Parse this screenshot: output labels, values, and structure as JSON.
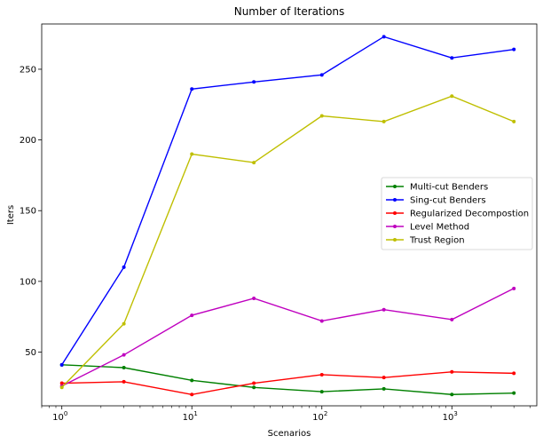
{
  "chart_data": {
    "type": "line",
    "title": "Number of Iterations",
    "xlabel": "Scenarios",
    "ylabel": "Iters",
    "xscale": "log",
    "xlim": [
      0.7,
      4500
    ],
    "ylim": [
      12,
      282
    ],
    "x": [
      1,
      3,
      10,
      30,
      100,
      300,
      1000,
      3000
    ],
    "xticks": [
      {
        "value": 1,
        "base": "10",
        "exp": "0"
      },
      {
        "value": 10,
        "base": "10",
        "exp": "1"
      },
      {
        "value": 100,
        "base": "10",
        "exp": "2"
      },
      {
        "value": 1000,
        "base": "10",
        "exp": "3"
      }
    ],
    "yticks": [
      50,
      100,
      150,
      200,
      250
    ],
    "grid": false,
    "legend_position": "center-right",
    "series": [
      {
        "name": "Multi-cut Benders",
        "color": "#008000",
        "values": [
          41,
          39,
          30,
          25,
          22,
          24,
          20,
          21
        ]
      },
      {
        "name": "Sing-cut Benders",
        "color": "#0000ff",
        "values": [
          41,
          110,
          236,
          241,
          246,
          273,
          258,
          264
        ]
      },
      {
        "name": "Regularized Decompostion",
        "color": "#ff0000",
        "values": [
          28,
          29,
          20,
          28,
          34,
          32,
          36,
          35
        ]
      },
      {
        "name": "Level Method",
        "color": "#bf00bf",
        "values": [
          26,
          48,
          76,
          88,
          72,
          80,
          73,
          95
        ]
      },
      {
        "name": "Trust Region",
        "color": "#bfbf00",
        "values": [
          25,
          70,
          190,
          184,
          217,
          213,
          231,
          213
        ]
      }
    ]
  }
}
